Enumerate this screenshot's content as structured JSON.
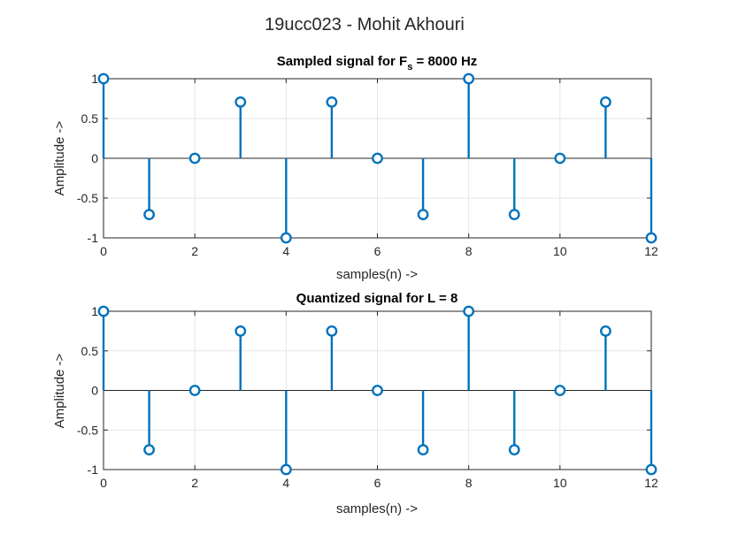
{
  "figure": {
    "title": "19ucc023 - Mohit Akhouri",
    "colors": {
      "stem": "#0072BD",
      "axis": "#262626",
      "grid": "#e6e6e6",
      "background": "#ffffff"
    }
  },
  "chart_data": [
    {
      "type": "stem",
      "title": "Sampled signal for F",
      "title_subscript": "s",
      "title_suffix": " = 8000 Hz",
      "xlabel": "samples(n) ->",
      "ylabel": "Amplitude ->",
      "xlim": [
        0,
        12
      ],
      "ylim": [
        -1,
        1
      ],
      "grid": true,
      "xticks": [
        0,
        2,
        4,
        6,
        8,
        10,
        12
      ],
      "yticks": [
        -1,
        -0.5,
        0,
        0.5,
        1
      ],
      "xtick_labels": [
        "0",
        "2",
        "4",
        "6",
        "8",
        "10",
        "12"
      ],
      "ytick_labels": [
        "-1",
        "-0.5",
        "0",
        "0.5",
        "1"
      ],
      "x": [
        0,
        1,
        2,
        3,
        4,
        5,
        6,
        7,
        8,
        9,
        10,
        11,
        12
      ],
      "values": [
        1,
        -0.707,
        0,
        0.707,
        -1,
        0.707,
        0,
        -0.707,
        1,
        -0.707,
        0,
        0.707,
        -1
      ]
    },
    {
      "type": "stem",
      "title": "Quantized signal for L = 8",
      "title_subscript": "",
      "title_suffix": "",
      "xlabel": "samples(n) ->",
      "ylabel": "Amplitude ->",
      "xlim": [
        0,
        12
      ],
      "ylim": [
        -1,
        1
      ],
      "grid": true,
      "xticks": [
        0,
        2,
        4,
        6,
        8,
        10,
        12
      ],
      "yticks": [
        -1,
        -0.5,
        0,
        0.5,
        1
      ],
      "xtick_labels": [
        "0",
        "2",
        "4",
        "6",
        "8",
        "10",
        "12"
      ],
      "ytick_labels": [
        "-1",
        "-0.5",
        "0",
        "0.5",
        "1"
      ],
      "x": [
        0,
        1,
        2,
        3,
        4,
        5,
        6,
        7,
        8,
        9,
        10,
        11,
        12
      ],
      "values": [
        1,
        -0.75,
        0,
        0.75,
        -1,
        0.75,
        0,
        -0.75,
        1,
        -0.75,
        0,
        0.75,
        -1
      ]
    }
  ]
}
